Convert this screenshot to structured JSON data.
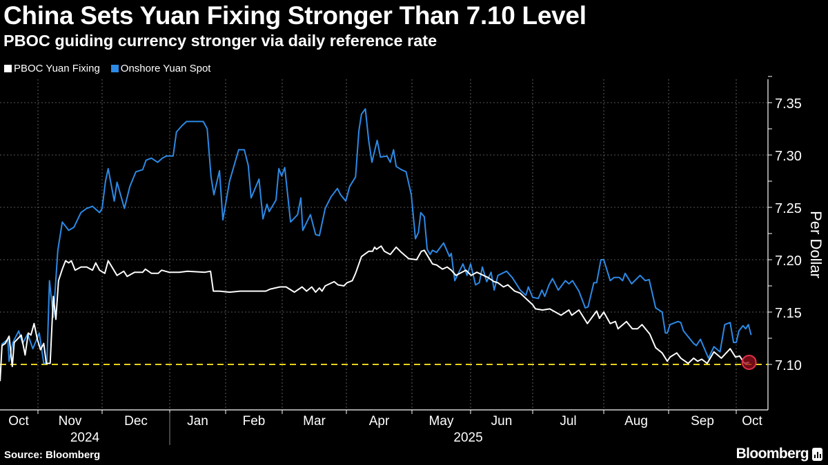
{
  "title": "China Sets Yuan Fixing Stronger Than 7.10 Level",
  "subtitle": "PBOC guiding currency stronger via daily reference rate",
  "source": "Source: Bloomberg",
  "brand": "Bloomberg",
  "chart_data": {
    "type": "line",
    "x_unit": "months since 2024-10-01",
    "xlim": [
      0,
      12.45
    ],
    "ylim": [
      7.057,
      7.372
    ],
    "ylabel": "Per Dollar",
    "y_ticks": [
      "7.10",
      "7.15",
      "7.20",
      "7.25",
      "7.30",
      "7.35"
    ],
    "y_tick_values": [
      7.1,
      7.15,
      7.2,
      7.25,
      7.3,
      7.35
    ],
    "month_labels": [
      "Oct",
      "Nov",
      "Dec",
      "Jan",
      "Feb",
      "Mar",
      "Apr",
      "May",
      "Jun",
      "Jul",
      "Aug",
      "Sep",
      "Oct"
    ],
    "year_labels": [
      {
        "label": "2024",
        "start": 0,
        "end": 3
      },
      {
        "label": "2025",
        "start": 3,
        "end": 12.45
      }
    ],
    "grid": true,
    "legend_position": "top-left",
    "reference_line": {
      "value": 7.1,
      "color": "#e8d21d",
      "style": "dashed"
    },
    "highlight": {
      "series": "PBOC Yuan Fixing",
      "x": 12.19,
      "y": 7.102,
      "color": "#e0334a"
    },
    "series": [
      {
        "name": "PBOC Yuan Fixing",
        "color": "#ffffff",
        "points": [
          [
            0.41,
            7.084
          ],
          [
            0.44,
            7.118
          ],
          [
            0.49,
            7.12
          ],
          [
            0.55,
            7.127
          ],
          [
            0.6,
            7.098
          ],
          [
            0.63,
            7.121
          ],
          [
            0.74,
            7.128
          ],
          [
            0.8,
            7.109
          ],
          [
            0.85,
            7.13
          ],
          [
            0.89,
            7.128
          ],
          [
            0.94,
            7.139
          ],
          [
            0.99,
            7.124
          ],
          [
            1.04,
            7.114
          ],
          [
            1.09,
            7.12
          ],
          [
            1.13,
            7.101
          ],
          [
            1.19,
            7.101
          ],
          [
            1.24,
            7.165
          ],
          [
            1.28,
            7.143
          ],
          [
            1.32,
            7.18
          ],
          [
            1.38,
            7.191
          ],
          [
            1.43,
            7.199
          ],
          [
            1.48,
            7.197
          ],
          [
            1.52,
            7.199
          ],
          [
            1.58,
            7.19
          ],
          [
            1.67,
            7.193
          ],
          [
            1.76,
            7.193
          ],
          [
            1.85,
            7.19
          ],
          [
            1.9,
            7.197
          ],
          [
            1.96,
            7.19
          ],
          [
            2.04,
            7.187
          ],
          [
            2.09,
            7.199
          ],
          [
            2.22,
            7.185
          ],
          [
            2.32,
            7.189
          ],
          [
            2.37,
            7.184
          ],
          [
            2.48,
            7.188
          ],
          [
            2.6,
            7.188
          ],
          [
            2.64,
            7.191
          ],
          [
            2.73,
            7.187
          ],
          [
            2.83,
            7.187
          ],
          [
            2.88,
            7.19
          ],
          [
            2.99,
            7.188
          ],
          [
            3.17,
            7.188
          ],
          [
            3.32,
            7.189
          ],
          [
            3.63,
            7.188
          ],
          [
            3.73,
            7.189
          ],
          [
            3.78,
            7.17
          ],
          [
            3.89,
            7.17
          ],
          [
            4.07,
            7.169
          ],
          [
            4.26,
            7.17
          ],
          [
            4.43,
            7.17
          ],
          [
            4.56,
            7.17
          ],
          [
            4.66,
            7.17
          ],
          [
            4.71,
            7.17
          ],
          [
            4.79,
            7.172
          ],
          [
            4.96,
            7.174
          ],
          [
            5.06,
            7.174
          ],
          [
            5.19,
            7.169
          ],
          [
            5.31,
            7.174
          ],
          [
            5.38,
            7.17
          ],
          [
            5.46,
            7.174
          ],
          [
            5.52,
            7.169
          ],
          [
            5.58,
            7.173
          ],
          [
            5.62,
            7.17
          ],
          [
            5.67,
            7.175
          ],
          [
            5.81,
            7.179
          ],
          [
            5.87,
            7.176
          ],
          [
            5.96,
            7.175
          ],
          [
            6.01,
            7.178
          ],
          [
            6.09,
            7.18
          ],
          [
            6.14,
            7.187
          ],
          [
            6.23,
            7.203
          ],
          [
            6.34,
            7.208
          ],
          [
            6.4,
            7.208
          ],
          [
            6.43,
            7.212
          ],
          [
            6.46,
            7.21
          ],
          [
            6.53,
            7.213
          ],
          [
            6.58,
            7.208
          ],
          [
            6.67,
            7.205
          ],
          [
            6.76,
            7.212
          ],
          [
            6.84,
            7.207
          ],
          [
            6.95,
            7.201
          ],
          [
            7.08,
            7.2
          ],
          [
            7.16,
            7.208
          ],
          [
            7.21,
            7.209
          ],
          [
            7.35,
            7.196
          ],
          [
            7.42,
            7.195
          ],
          [
            7.52,
            7.191
          ],
          [
            7.6,
            7.193
          ],
          [
            7.67,
            7.19
          ],
          [
            7.75,
            7.185
          ],
          [
            7.92,
            7.19
          ],
          [
            8.01,
            7.185
          ],
          [
            8.1,
            7.188
          ],
          [
            8.28,
            7.183
          ],
          [
            8.38,
            7.179
          ],
          [
            8.44,
            7.178
          ],
          [
            8.53,
            7.174
          ],
          [
            8.6,
            7.176
          ],
          [
            8.71,
            7.17
          ],
          [
            8.8,
            7.168
          ],
          [
            8.89,
            7.163
          ],
          [
            9.0,
            7.157
          ],
          [
            9.04,
            7.153
          ],
          [
            9.14,
            7.152
          ],
          [
            9.24,
            7.153
          ],
          [
            9.4,
            7.147
          ],
          [
            9.51,
            7.152
          ],
          [
            9.55,
            7.147
          ],
          [
            9.65,
            7.152
          ],
          [
            9.77,
            7.139
          ],
          [
            9.9,
            7.151
          ],
          [
            9.94,
            7.144
          ],
          [
            10.0,
            7.15
          ],
          [
            10.1,
            7.139
          ],
          [
            10.18,
            7.141
          ],
          [
            10.22,
            7.134
          ],
          [
            10.35,
            7.141
          ],
          [
            10.44,
            7.134
          ],
          [
            10.52,
            7.134
          ],
          [
            10.59,
            7.138
          ],
          [
            10.71,
            7.129
          ],
          [
            10.8,
            7.116
          ],
          [
            10.9,
            7.111
          ],
          [
            10.98,
            7.103
          ],
          [
            11.02,
            7.107
          ],
          [
            11.12,
            7.111
          ],
          [
            11.18,
            7.106
          ],
          [
            11.29,
            7.101
          ],
          [
            11.37,
            7.106
          ],
          [
            11.43,
            7.103
          ],
          [
            11.49,
            7.105
          ],
          [
            11.57,
            7.101
          ],
          [
            11.67,
            7.112
          ],
          [
            11.78,
            7.106
          ],
          [
            11.91,
            7.115
          ],
          [
            11.99,
            7.107
          ],
          [
            12.05,
            7.108
          ],
          [
            12.12,
            7.101
          ],
          [
            12.19,
            7.102
          ]
        ]
      },
      {
        "name": "Onshore Yuan Spot",
        "color": "#2d8ae6",
        "points": [
          [
            0.43,
            7.119
          ],
          [
            0.53,
            7.124
          ],
          [
            0.55,
            7.103
          ],
          [
            0.61,
            7.121
          ],
          [
            0.7,
            7.132
          ],
          [
            0.76,
            7.12
          ],
          [
            0.84,
            7.129
          ],
          [
            0.92,
            7.115
          ],
          [
            1.02,
            7.13
          ],
          [
            1.09,
            7.101
          ],
          [
            1.14,
            7.101
          ],
          [
            1.18,
            7.18
          ],
          [
            1.24,
            7.145
          ],
          [
            1.31,
            7.209
          ],
          [
            1.38,
            7.236
          ],
          [
            1.48,
            7.228
          ],
          [
            1.56,
            7.231
          ],
          [
            1.67,
            7.245
          ],
          [
            1.76,
            7.249
          ],
          [
            1.85,
            7.251
          ],
          [
            1.96,
            7.245
          ],
          [
            2.0,
            7.249
          ],
          [
            2.05,
            7.275
          ],
          [
            2.09,
            7.287
          ],
          [
            2.18,
            7.256
          ],
          [
            2.22,
            7.274
          ],
          [
            2.33,
            7.249
          ],
          [
            2.41,
            7.27
          ],
          [
            2.5,
            7.284
          ],
          [
            2.6,
            7.286
          ],
          [
            2.65,
            7.295
          ],
          [
            2.73,
            7.297
          ],
          [
            2.82,
            7.293
          ],
          [
            2.89,
            7.297
          ],
          [
            2.95,
            7.299
          ],
          [
            3.06,
            7.299
          ],
          [
            3.12,
            7.322
          ],
          [
            3.22,
            7.328
          ],
          [
            3.3,
            7.332
          ],
          [
            3.6,
            7.332
          ],
          [
            3.67,
            7.325
          ],
          [
            3.74,
            7.279
          ],
          [
            3.79,
            7.262
          ],
          [
            3.89,
            7.285
          ],
          [
            3.95,
            7.238
          ],
          [
            4.07,
            7.275
          ],
          [
            4.23,
            7.305
          ],
          [
            4.33,
            7.305
          ],
          [
            4.4,
            7.29
          ],
          [
            4.45,
            7.259
          ],
          [
            4.59,
            7.277
          ],
          [
            4.66,
            7.239
          ],
          [
            4.73,
            7.253
          ],
          [
            4.77,
            7.246
          ],
          [
            4.89,
            7.257
          ],
          [
            4.94,
            7.287
          ],
          [
            4.99,
            7.28
          ],
          [
            5.04,
            7.288
          ],
          [
            5.13,
            7.236
          ],
          [
            5.24,
            7.243
          ],
          [
            5.29,
            7.259
          ],
          [
            5.32,
            7.228
          ],
          [
            5.44,
            7.243
          ],
          [
            5.52,
            7.224
          ],
          [
            5.58,
            7.223
          ],
          [
            5.67,
            7.249
          ],
          [
            5.76,
            7.26
          ],
          [
            5.86,
            7.268
          ],
          [
            5.91,
            7.262
          ],
          [
            5.99,
            7.256
          ],
          [
            6.05,
            7.27
          ],
          [
            6.14,
            7.279
          ],
          [
            6.19,
            7.323
          ],
          [
            6.23,
            7.339
          ],
          [
            6.29,
            7.344
          ],
          [
            6.34,
            7.314
          ],
          [
            6.39,
            7.293
          ],
          [
            6.47,
            7.314
          ],
          [
            6.52,
            7.298
          ],
          [
            6.62,
            7.299
          ],
          [
            6.67,
            7.293
          ],
          [
            6.72,
            7.305
          ],
          [
            6.76,
            7.289
          ],
          [
            6.84,
            7.286
          ],
          [
            6.91,
            7.284
          ],
          [
            6.99,
            7.262
          ],
          [
            7.06,
            7.22
          ],
          [
            7.11,
            7.226
          ],
          [
            7.15,
            7.245
          ],
          [
            7.21,
            7.241
          ],
          [
            7.26,
            7.21
          ],
          [
            7.31,
            7.205
          ],
          [
            7.35,
            7.209
          ],
          [
            7.42,
            7.207
          ],
          [
            7.54,
            7.216
          ],
          [
            7.64,
            7.203
          ],
          [
            7.67,
            7.206
          ],
          [
            7.73,
            7.18
          ],
          [
            7.87,
            7.196
          ],
          [
            7.94,
            7.185
          ],
          [
            8.0,
            7.196
          ],
          [
            8.08,
            7.176
          ],
          [
            8.14,
            7.178
          ],
          [
            8.19,
            7.193
          ],
          [
            8.26,
            7.179
          ],
          [
            8.33,
            7.188
          ],
          [
            8.38,
            7.171
          ],
          [
            8.44,
            7.185
          ],
          [
            8.58,
            7.189
          ],
          [
            8.67,
            7.183
          ],
          [
            8.8,
            7.171
          ],
          [
            8.89,
            7.166
          ],
          [
            8.93,
            7.174
          ],
          [
            9.0,
            7.164
          ],
          [
            9.08,
            7.163
          ],
          [
            9.13,
            7.171
          ],
          [
            9.17,
            7.165
          ],
          [
            9.23,
            7.176
          ],
          [
            9.28,
            7.182
          ],
          [
            9.36,
            7.171
          ],
          [
            9.46,
            7.18
          ],
          [
            9.51,
            7.177
          ],
          [
            9.56,
            7.18
          ],
          [
            9.65,
            7.17
          ],
          [
            9.74,
            7.154
          ],
          [
            9.78,
            7.155
          ],
          [
            9.86,
            7.178
          ],
          [
            9.9,
            7.178
          ],
          [
            9.96,
            7.2
          ],
          [
            10.0,
            7.2
          ],
          [
            10.1,
            7.18
          ],
          [
            10.16,
            7.183
          ],
          [
            10.24,
            7.183
          ],
          [
            10.29,
            7.18
          ],
          [
            10.33,
            7.187
          ],
          [
            10.43,
            7.177
          ],
          [
            10.56,
            7.185
          ],
          [
            10.64,
            7.18
          ],
          [
            10.7,
            7.181
          ],
          [
            10.8,
            7.154
          ],
          [
            10.9,
            7.15
          ],
          [
            10.95,
            7.13
          ],
          [
            10.98,
            7.13
          ],
          [
            11.02,
            7.138
          ],
          [
            11.14,
            7.141
          ],
          [
            11.18,
            7.14
          ],
          [
            11.22,
            7.132
          ],
          [
            11.37,
            7.12
          ],
          [
            11.41,
            7.118
          ],
          [
            11.47,
            7.124
          ],
          [
            11.59,
            7.106
          ],
          [
            11.67,
            7.117
          ],
          [
            11.76,
            7.112
          ],
          [
            11.83,
            7.138
          ],
          [
            11.91,
            7.14
          ],
          [
            11.96,
            7.121
          ],
          [
            12.0,
            7.121
          ],
          [
            12.04,
            7.132
          ],
          [
            12.1,
            7.137
          ],
          [
            12.14,
            7.134
          ],
          [
            12.18,
            7.138
          ],
          [
            12.22,
            7.128
          ]
        ]
      }
    ]
  }
}
